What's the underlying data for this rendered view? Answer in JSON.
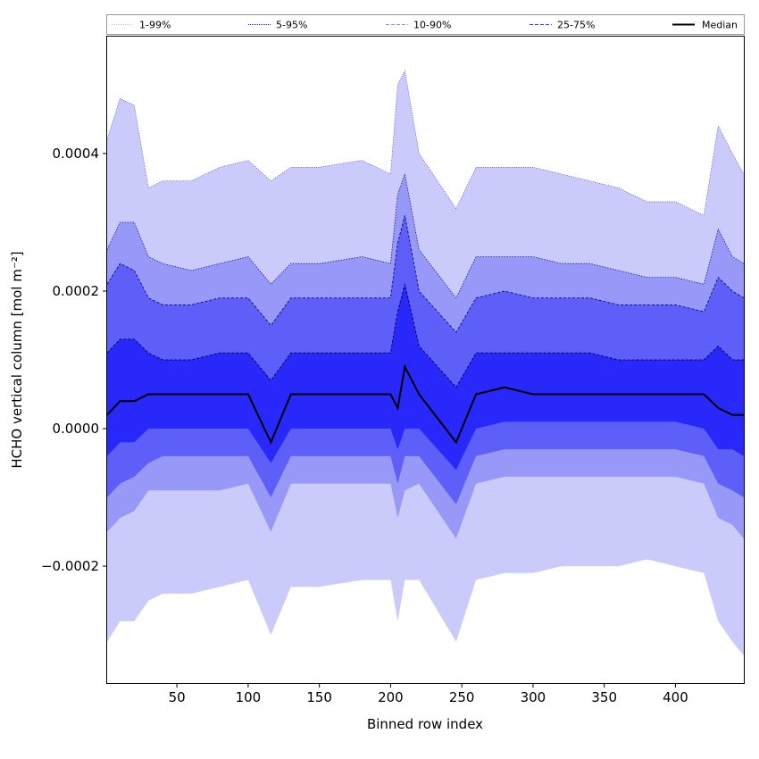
{
  "chart_data": {
    "type": "area",
    "title": "",
    "xlabel": "Binned row index",
    "ylabel": "HCHO vertical column [mol m⁻²]",
    "xlim": [
      1,
      448
    ],
    "ylim": [
      -0.00037,
      0.00057
    ],
    "x_ticks": [
      50,
      100,
      150,
      200,
      250,
      300,
      350,
      400
    ],
    "x_tick_labels": [
      "50",
      "100",
      "150",
      "200",
      "250",
      "300",
      "350",
      "400"
    ],
    "y_ticks": [
      -0.0002,
      0.0,
      0.0002,
      0.0004
    ],
    "y_tick_labels": [
      "−0.0002",
      "0.0000",
      "0.0002",
      "0.0004"
    ],
    "grid": false,
    "legend_placement": "top, above plot",
    "legend": [
      {
        "label": "1-99%",
        "style": "dotted",
        "color": "#bbbbbb"
      },
      {
        "label": "5-95%",
        "style": "dotted",
        "color": "#1a1ad6"
      },
      {
        "label": "10-90%",
        "style": "dashed",
        "color": "#8c8cf0"
      },
      {
        "label": "25-75%",
        "style": "dashed",
        "color": "#3d3df5"
      },
      {
        "label": "Median",
        "style": "solid",
        "color": "#000000"
      }
    ],
    "x": [
      1,
      10,
      20,
      30,
      40,
      60,
      80,
      100,
      116,
      130,
      150,
      180,
      200,
      205,
      210,
      220,
      246,
      260,
      280,
      300,
      320,
      340,
      360,
      380,
      400,
      420,
      430,
      440,
      448
    ],
    "series": [
      {
        "name": "1-99%",
        "color": "#cbcbfb",
        "upper": [
          0.00042,
          0.00048,
          0.00047,
          0.00035,
          0.00036,
          0.00036,
          0.00038,
          0.00039,
          0.00036,
          0.00038,
          0.00038,
          0.00039,
          0.00037,
          0.0005,
          0.00052,
          0.0004,
          0.00032,
          0.00038,
          0.00038,
          0.00038,
          0.00037,
          0.00036,
          0.00035,
          0.00033,
          0.00033,
          0.00031,
          0.00044,
          0.0004,
          0.00037
        ],
        "lower": [
          -0.00031,
          -0.00028,
          -0.00028,
          -0.00025,
          -0.00024,
          -0.00024,
          -0.00023,
          -0.00022,
          -0.0003,
          -0.00023,
          -0.00023,
          -0.00022,
          -0.00022,
          -0.00028,
          -0.00022,
          -0.00022,
          -0.00031,
          -0.00022,
          -0.00021,
          -0.00021,
          -0.0002,
          -0.0002,
          -0.0002,
          -0.00019,
          -0.0002,
          -0.00021,
          -0.00028,
          -0.00031,
          -0.00033
        ]
      },
      {
        "name": "5-95%",
        "color": "#9898f8",
        "upper": [
          0.00026,
          0.0003,
          0.0003,
          0.00025,
          0.00024,
          0.00023,
          0.00024,
          0.00025,
          0.00021,
          0.00024,
          0.00024,
          0.00025,
          0.00024,
          0.00034,
          0.00037,
          0.00026,
          0.00019,
          0.00025,
          0.00025,
          0.00025,
          0.00024,
          0.00024,
          0.00023,
          0.00022,
          0.00022,
          0.00021,
          0.00029,
          0.00025,
          0.00024
        ],
        "lower": [
          -0.00015,
          -0.00013,
          -0.00012,
          -9e-05,
          -9e-05,
          -9e-05,
          -9e-05,
          -8e-05,
          -0.00015,
          -8e-05,
          -8e-05,
          -8e-05,
          -8e-05,
          -0.00013,
          -9e-05,
          -8e-05,
          -0.00016,
          -8e-05,
          -7e-05,
          -7e-05,
          -7e-05,
          -7e-05,
          -7e-05,
          -7e-05,
          -7e-05,
          -8e-05,
          -0.00013,
          -0.00014,
          -0.00016
        ]
      },
      {
        "name": "10-90%",
        "color": "#5e5ef8",
        "upper": [
          0.00021,
          0.00024,
          0.00023,
          0.00019,
          0.00018,
          0.00018,
          0.00019,
          0.00019,
          0.00015,
          0.00019,
          0.00019,
          0.00019,
          0.00019,
          0.00027,
          0.00031,
          0.0002,
          0.00014,
          0.00019,
          0.0002,
          0.00019,
          0.00019,
          0.00019,
          0.00018,
          0.00018,
          0.00018,
          0.00017,
          0.00022,
          0.0002,
          0.00019
        ],
        "lower": [
          -0.0001,
          -8e-05,
          -7e-05,
          -5e-05,
          -4e-05,
          -4e-05,
          -4e-05,
          -4e-05,
          -0.0001,
          -4e-05,
          -4e-05,
          -4e-05,
          -4e-05,
          -8e-05,
          -4e-05,
          -4e-05,
          -0.00011,
          -4e-05,
          -3e-05,
          -3e-05,
          -3e-05,
          -3e-05,
          -3e-05,
          -3e-05,
          -3e-05,
          -4e-05,
          -8e-05,
          -9e-05,
          -0.0001
        ]
      },
      {
        "name": "25-75%",
        "color": "#2828fb",
        "upper": [
          0.00011,
          0.00013,
          0.00013,
          0.00011,
          0.0001,
          0.0001,
          0.00011,
          0.00011,
          7e-05,
          0.00011,
          0.00011,
          0.00011,
          0.00011,
          0.00017,
          0.00021,
          0.00012,
          6e-05,
          0.00011,
          0.00011,
          0.00011,
          0.00011,
          0.00011,
          0.0001,
          0.0001,
          0.0001,
          0.0001,
          0.00012,
          0.0001,
          0.0001
        ],
        "lower": [
          -4e-05,
          -2e-05,
          -2e-05,
          0.0,
          0.0,
          0.0,
          0.0,
          0.0,
          -5e-05,
          0.0,
          0.0,
          0.0,
          0.0,
          -3e-05,
          0.0,
          0.0,
          -6e-05,
          0.0,
          1e-05,
          1e-05,
          1e-05,
          1e-05,
          1e-05,
          1e-05,
          1e-05,
          0.0,
          -3e-05,
          -3e-05,
          -4e-05
        ]
      },
      {
        "name": "Median",
        "color": "#000000",
        "values": [
          2e-05,
          4e-05,
          4e-05,
          5e-05,
          5e-05,
          5e-05,
          5e-05,
          5e-05,
          -2e-05,
          5e-05,
          5e-05,
          5e-05,
          5e-05,
          3e-05,
          9e-05,
          5e-05,
          -2e-05,
          5e-05,
          6e-05,
          5e-05,
          5e-05,
          5e-05,
          5e-05,
          5e-05,
          5e-05,
          5e-05,
          3e-05,
          2e-05,
          2e-05
        ]
      }
    ]
  }
}
